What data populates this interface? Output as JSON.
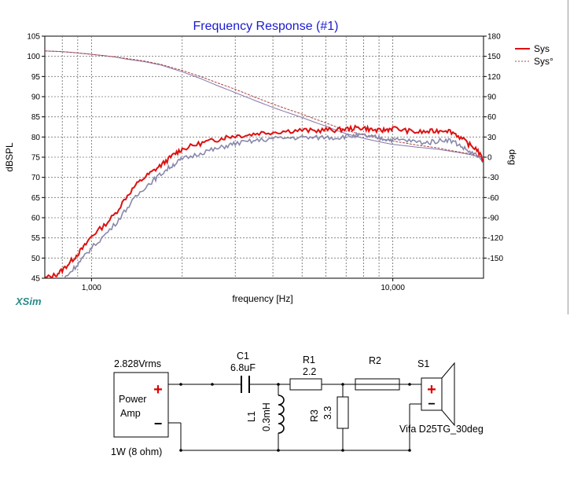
{
  "app": {
    "brand": "XSim"
  },
  "chart_data": {
    "type": "line",
    "title": "Frequency Response (#1)",
    "xlabel": "frequency [Hz]",
    "ylabel": "dBSPL",
    "y2label": "deg",
    "xscale": "log",
    "xlim": [
      700,
      20000
    ],
    "ylim": [
      45,
      105
    ],
    "y2lim": [
      -180,
      180
    ],
    "x_tick_labels": [
      "1,000",
      "10,000"
    ],
    "y_tick_labels": [
      "105",
      "100",
      "95",
      "90",
      "85",
      "80",
      "75",
      "70",
      "65",
      "60",
      "55",
      "50",
      "45"
    ],
    "y2_tick_labels": [
      "180",
      "150",
      "120",
      "90",
      "60",
      "30",
      "0",
      "-30",
      "-60",
      "-90",
      "-120",
      "-150"
    ],
    "grid": true,
    "legend_position": "right",
    "series": [
      {
        "name": "Sys",
        "axis": "left",
        "color": "#dd1111",
        "style": "solid",
        "x": [
          700,
          760,
          800,
          850,
          900,
          950,
          1000,
          1100,
          1200,
          1300,
          1400,
          1500,
          1600,
          1700,
          1800,
          1900,
          2000,
          2200,
          2400,
          2600,
          2800,
          3000,
          3300,
          3600,
          4000,
          4500,
          5000,
          5500,
          6000,
          6500,
          7000,
          7500,
          8000,
          8500,
          9000,
          9500,
          10000,
          11000,
          12000,
          13000,
          14000,
          15000,
          16000,
          17000,
          18000,
          19000,
          20000
        ],
        "y": [
          45,
          45.8,
          47,
          49,
          51,
          53,
          55.5,
          58,
          61,
          65,
          68,
          70,
          71.5,
          73,
          74.5,
          76,
          77,
          78,
          78.8,
          79.3,
          80,
          80.3,
          80.5,
          81,
          81.2,
          81.5,
          81.7,
          81.5,
          81.8,
          81.7,
          82,
          82.2,
          82.3,
          81.8,
          81.5,
          81.8,
          82.2,
          81.6,
          81.2,
          81.3,
          81.5,
          81.8,
          81,
          79.5,
          78,
          77,
          74
        ]
      },
      {
        "name": "",
        "axis": "left",
        "color": "#8888aa",
        "style": "solid",
        "x": [
          700,
          760,
          800,
          850,
          900,
          950,
          1000,
          1100,
          1200,
          1300,
          1400,
          1500,
          1600,
          1700,
          1800,
          1900,
          2000,
          2200,
          2400,
          2600,
          2800,
          3000,
          3300,
          3600,
          4000,
          4500,
          5000,
          5500,
          6000,
          6500,
          7000,
          7500,
          8000,
          8500,
          9000,
          9500,
          10000,
          11000,
          12000,
          13000,
          14000,
          15000,
          16000,
          17000,
          18000,
          19000,
          20000
        ],
        "y": [
          42,
          43,
          44.5,
          46.5,
          48.5,
          50.5,
          52.5,
          55.5,
          58.5,
          62,
          65,
          67.5,
          69.2,
          70.8,
          72.3,
          73.5,
          74.5,
          75.5,
          76.5,
          77,
          77.8,
          78.4,
          78.8,
          79.2,
          79.6,
          79.8,
          79.9,
          79.8,
          80,
          79.8,
          80.2,
          80.3,
          80.4,
          80,
          79.8,
          79.5,
          79.3,
          79.2,
          78.8,
          78.6,
          79,
          79.4,
          78.8,
          77.5,
          76.3,
          75.4,
          73.5
        ]
      },
      {
        "name": "Sys°",
        "axis": "right",
        "color": "#aa4444",
        "style": "dashed",
        "x": [
          700,
          800,
          900,
          1000,
          1100,
          1200,
          1300,
          1500,
          1700,
          2000,
          2300,
          2600,
          3000,
          3500,
          4000,
          4500,
          5000,
          5500,
          6000,
          6500,
          7000,
          8000,
          9000,
          10000,
          11000,
          12000,
          14000,
          16000,
          18000,
          20000
        ],
        "y": [
          158,
          157,
          155,
          153,
          151,
          149,
          147,
          143,
          138,
          129,
          120,
          111,
          101,
          89,
          79,
          71,
          64,
          57,
          51,
          45,
          40,
          33,
          28,
          24,
          21,
          18,
          14,
          9,
          5,
          0
        ]
      },
      {
        "name": "",
        "axis": "right",
        "color": "#8877aa",
        "style": "solid",
        "x": [
          700,
          800,
          900,
          1000,
          1100,
          1200,
          1300,
          1500,
          1700,
          2000,
          2300,
          2600,
          3000,
          3500,
          4000,
          4500,
          5000,
          5500,
          6000,
          6500,
          7000,
          8000,
          9000,
          10000,
          11000,
          12000,
          14000,
          16000,
          18000,
          20000
        ],
        "y": [
          158,
          157,
          155,
          153,
          151,
          149,
          146,
          142,
          137,
          127,
          117,
          107,
          96,
          84,
          74,
          66,
          59,
          52,
          46,
          40,
          35,
          28,
          23,
          19,
          17,
          15,
          12,
          8,
          4,
          -1
        ]
      }
    ]
  },
  "schematic": {
    "source_voltage": "2.828Vrms",
    "source_name_line1": "Power",
    "source_name_line2": "Amp",
    "source_power": "1W (8 ohm)",
    "plus_symbol": "+",
    "minus_symbol": "−",
    "c1_name": "C1",
    "c1_value": "6.8uF",
    "r1_name": "R1",
    "r1_value": "2.2",
    "r2_name": "R2",
    "l1_name": "L1",
    "l1_value": "0.3mH",
    "r3_name": "R3",
    "r3_value": "3.3",
    "s1_name": "S1",
    "s1_model": "Vifa D25TG_30deg"
  }
}
